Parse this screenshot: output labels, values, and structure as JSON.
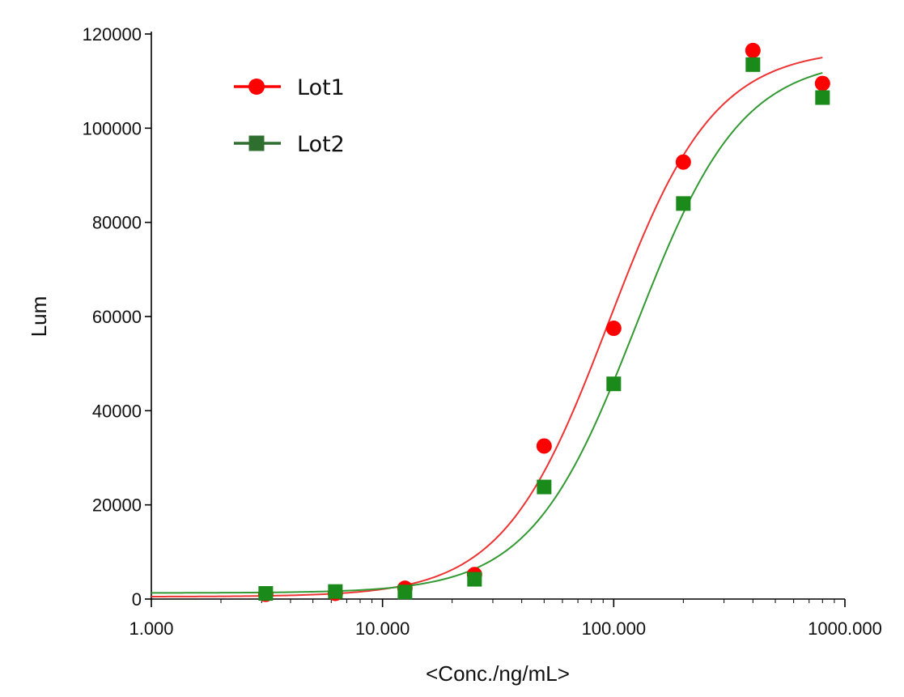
{
  "chart_data": {
    "type": "scatter",
    "title": "",
    "xlabel": "<Conc./ng/mL>",
    "ylabel": "Lum",
    "xscale": "log",
    "xlim": [
      1,
      1000
    ],
    "ylim": [
      0,
      120000
    ],
    "x_ticks": [
      {
        "value": 1,
        "label": "1.000"
      },
      {
        "value": 10,
        "label": "10.000"
      },
      {
        "value": 100,
        "label": "100.000"
      },
      {
        "value": 1000,
        "label": "1000.000"
      }
    ],
    "y_ticks": [
      {
        "value": 0,
        "label": "0"
      },
      {
        "value": 20000,
        "label": "20000"
      },
      {
        "value": 40000,
        "label": "40000"
      },
      {
        "value": 60000,
        "label": "60000"
      },
      {
        "value": 80000,
        "label": "80000"
      },
      {
        "value": 100000,
        "label": "100000"
      },
      {
        "value": 120000,
        "label": "120000"
      }
    ],
    "grid": false,
    "legend_position": "top-left",
    "series": [
      {
        "name": "Lot1",
        "color": "#ff0000",
        "line_color": "#ee3333",
        "marker": "circle",
        "x": [
          3.125,
          6.25,
          12.5,
          25,
          50,
          100,
          200,
          400,
          800
        ],
        "y": [
          1000,
          1200,
          2300,
          5200,
          32500,
          57500,
          92800,
          116500,
          109500
        ],
        "fit": {
          "model": "4PL",
          "bottom": 500,
          "top": 117000,
          "ec50": 95,
          "hill": 1.9
        }
      },
      {
        "name": "Lot2",
        "color": "#1a8a1a",
        "line_color": "#339933",
        "legend_color": "#2e6e2e",
        "marker": "square",
        "x": [
          3.125,
          6.25,
          12.5,
          25,
          50,
          100,
          200,
          400,
          800
        ],
        "y": [
          1200,
          1600,
          1500,
          4200,
          23800,
          45700,
          84000,
          113500,
          106500
        ],
        "fit": {
          "model": "4PL",
          "bottom": 1300,
          "top": 115000,
          "ec50": 125,
          "hill": 1.9
        }
      }
    ]
  }
}
